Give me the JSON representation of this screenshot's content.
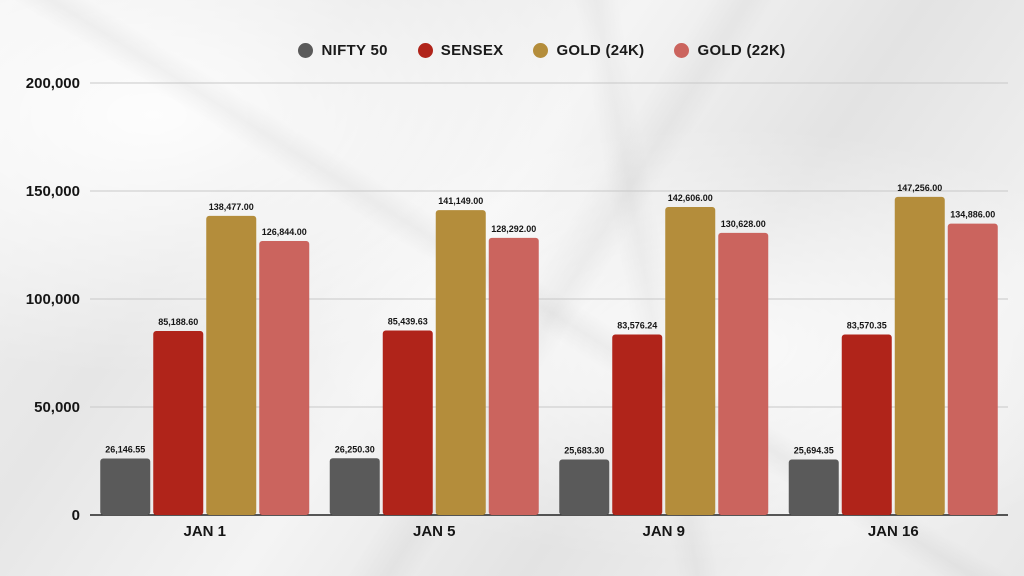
{
  "chart_data": {
    "type": "bar",
    "categories": [
      "JAN 1",
      "JAN 5",
      "JAN 9",
      "JAN 16"
    ],
    "series": [
      {
        "name": "NIFTY 50",
        "color": "#5a5a5a",
        "values": [
          26146.55,
          26250.3,
          25683.3,
          25694.35
        ],
        "labels": [
          "26,146.55",
          "26,250.30",
          "25,683.30",
          "25,694.35"
        ]
      },
      {
        "name": "SENSEX",
        "color": "#b0241a",
        "values": [
          85188.6,
          85439.63,
          83576.24,
          83570.35
        ],
        "labels": [
          "85,188.60",
          "85,439.63",
          "83,576.24",
          "83,570.35"
        ]
      },
      {
        "name": "GOLD (24K)",
        "color": "#b48d3b",
        "values": [
          138477.0,
          141149.0,
          142606.0,
          147256.0
        ],
        "labels": [
          "138,477.00",
          "141,149.00",
          "142,606.00",
          "147,256.00"
        ]
      },
      {
        "name": "GOLD (22K)",
        "color": "#cb645e",
        "values": [
          126844.0,
          128292.0,
          130628.0,
          134886.0
        ],
        "labels": [
          "126,844.00",
          "128,292.00",
          "130,628.00",
          "134,886.00"
        ]
      }
    ],
    "yticks": [
      0,
      50000,
      100000,
      150000,
      200000
    ],
    "ytick_labels": [
      "0",
      "50,000",
      "100,000",
      "150,000",
      "200,000"
    ],
    "ylim": [
      0,
      200000
    ],
    "grid": true,
    "legend_position": "top-center"
  }
}
